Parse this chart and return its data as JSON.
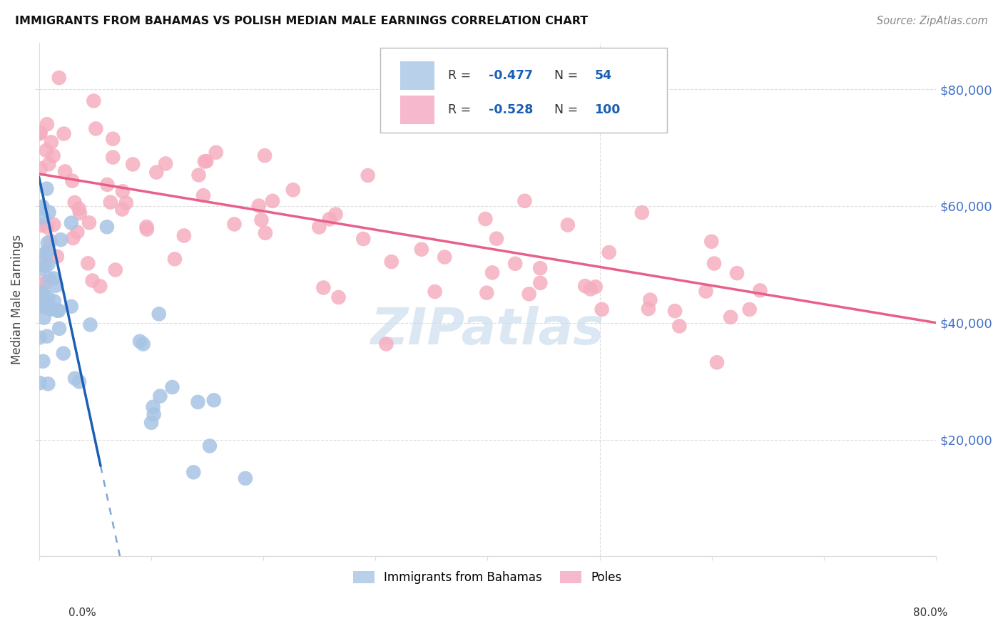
{
  "title": "IMMIGRANTS FROM BAHAMAS VS POLISH MEDIAN MALE EARNINGS CORRELATION CHART",
  "source": "Source: ZipAtlas.com",
  "ylabel": "Median Male Earnings",
  "legend_blue_label": "Immigrants from Bahamas",
  "legend_pink_label": "Poles",
  "blue_dot_color": "#a8c4e5",
  "pink_dot_color": "#f5aec0",
  "blue_line_color": "#1a5fb4",
  "pink_line_color": "#e8608a",
  "legend_box_blue": "#b8d0ea",
  "legend_box_pink": "#f5b8cc",
  "r_value_color": "#1a5fb4",
  "n_value_color": "#1a5fb4",
  "label_color": "#333333",
  "right_axis_color": "#4472c4",
  "watermark_color": "#ccddef",
  "grid_color": "#dddddd",
  "xlim": [
    0,
    80
  ],
  "ylim": [
    0,
    88000
  ],
  "yticks": [
    20000,
    40000,
    60000,
    80000
  ],
  "ytick_labels": [
    "$20,000",
    "$40,000",
    "$60,000",
    "$80,000"
  ],
  "blue_line_x0": 0.0,
  "blue_line_y0": 65000,
  "blue_line_slope": -9000,
  "blue_solid_end": 5.5,
  "blue_dash_end": 14.0,
  "pink_line_x0": 0.0,
  "pink_line_y0": 65500,
  "pink_line_x1": 80.0,
  "pink_line_y1": 40000
}
